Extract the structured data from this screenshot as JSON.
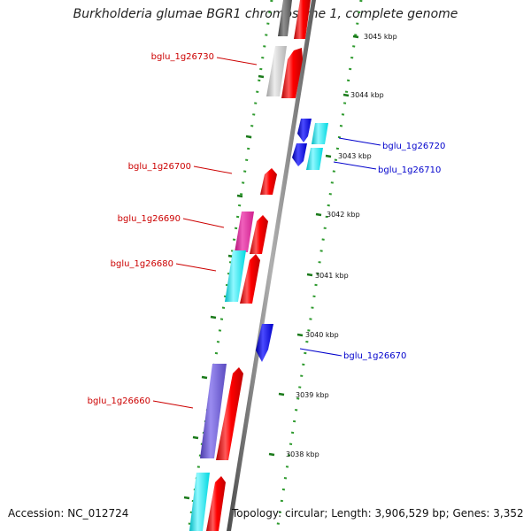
{
  "title": "Burkholderia glumae BGR1 chromosome 1, complete genome",
  "footer": {
    "accession": "Accession: NC_012724",
    "summary": "Topology: circular; Length: 3,906,529 bp; Genes: 3,352"
  },
  "colors": {
    "forward_strand_gene": "#ff0000",
    "reverse_strand_gene": "#0000ff",
    "label_forward": "#cc0000",
    "label_reverse": "#0000cc",
    "cog_cyan": "#00e0e8",
    "cog_magenta": "#e0209a",
    "cog_purple": "#6a5acd",
    "cog_grey": "#c8c8c8",
    "scale_ticks": "#1a7a1a",
    "backbone": "#808080"
  },
  "scale_labels": [
    "3045 kbp",
    "3044 kbp",
    "3043 kbp",
    "3042 kbp",
    "3041 kbp",
    "3040 kbp",
    "3039 kbp",
    "3038 kbp"
  ],
  "gene_labels": [
    {
      "name": "bglu_1g26730",
      "strand": "forward"
    },
    {
      "name": "bglu_1g26720",
      "strand": "reverse"
    },
    {
      "name": "bglu_1g26710",
      "strand": "reverse"
    },
    {
      "name": "bglu_1g26700",
      "strand": "forward"
    },
    {
      "name": "bglu_1g26690",
      "strand": "forward"
    },
    {
      "name": "bglu_1g26680",
      "strand": "forward"
    },
    {
      "name": "bglu_1g26670",
      "strand": "reverse"
    },
    {
      "name": "bglu_1g26660",
      "strand": "forward"
    }
  ]
}
